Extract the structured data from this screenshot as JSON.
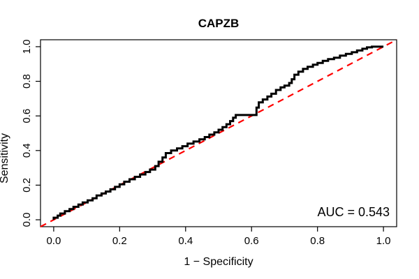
{
  "chart_data": {
    "type": "line",
    "subtype": "roc-curve",
    "title": "CAPZB",
    "xlabel": "1 − Specificity",
    "ylabel": "Sensitivity",
    "xlim": [
      0,
      1
    ],
    "ylim": [
      0,
      1
    ],
    "axis_padding_fraction": 0.04,
    "grid": false,
    "legend": "none",
    "x_ticks": [
      0.0,
      0.2,
      0.4,
      0.6,
      0.8,
      1.0
    ],
    "y_ticks": [
      0.0,
      0.2,
      0.4,
      0.6,
      0.8,
      1.0
    ],
    "x_tick_labels": [
      "0.0",
      "0.2",
      "0.4",
      "0.6",
      "0.8",
      "1.0"
    ],
    "y_tick_labels": [
      "0.0",
      "0.2",
      "0.4",
      "0.6",
      "0.8",
      "1.0"
    ],
    "auc": 0.543,
    "annotations": [
      {
        "text": "AUC = 0.543",
        "x": 0.97,
        "y": 0.06,
        "align": "right"
      }
    ],
    "colors": {
      "curve": "#000000",
      "diagonal": "#FF0000",
      "axis": "#000000",
      "text": "#000000",
      "background": "#FFFFFF"
    },
    "series": [
      {
        "name": "ROC step curve",
        "style": "solid",
        "color": "#000000",
        "width": 3,
        "points": [
          [
            0,
            0
          ],
          [
            0,
            0.012
          ],
          [
            0.012,
            0.012
          ],
          [
            0.012,
            0.024
          ],
          [
            0.02,
            0.024
          ],
          [
            0.02,
            0.036
          ],
          [
            0.034,
            0.036
          ],
          [
            0.034,
            0.05
          ],
          [
            0.048,
            0.05
          ],
          [
            0.048,
            0.062
          ],
          [
            0.06,
            0.062
          ],
          [
            0.06,
            0.075
          ],
          [
            0.075,
            0.075
          ],
          [
            0.075,
            0.088
          ],
          [
            0.088,
            0.088
          ],
          [
            0.088,
            0.1
          ],
          [
            0.103,
            0.1
          ],
          [
            0.103,
            0.112
          ],
          [
            0.118,
            0.112
          ],
          [
            0.118,
            0.124
          ],
          [
            0.13,
            0.124
          ],
          [
            0.13,
            0.14
          ],
          [
            0.145,
            0.14
          ],
          [
            0.145,
            0.152
          ],
          [
            0.158,
            0.152
          ],
          [
            0.158,
            0.163
          ],
          [
            0.172,
            0.163
          ],
          [
            0.172,
            0.176
          ],
          [
            0.186,
            0.176
          ],
          [
            0.186,
            0.19
          ],
          [
            0.2,
            0.19
          ],
          [
            0.2,
            0.205
          ],
          [
            0.214,
            0.205
          ],
          [
            0.214,
            0.22
          ],
          [
            0.23,
            0.22
          ],
          [
            0.23,
            0.234
          ],
          [
            0.246,
            0.234
          ],
          [
            0.246,
            0.248
          ],
          [
            0.262,
            0.248
          ],
          [
            0.262,
            0.262
          ],
          [
            0.278,
            0.262
          ],
          [
            0.278,
            0.276
          ],
          [
            0.292,
            0.276
          ],
          [
            0.292,
            0.29
          ],
          [
            0.308,
            0.29
          ],
          [
            0.308,
            0.31
          ],
          [
            0.318,
            0.31
          ],
          [
            0.318,
            0.335
          ],
          [
            0.33,
            0.335
          ],
          [
            0.33,
            0.36
          ],
          [
            0.34,
            0.36
          ],
          [
            0.34,
            0.385
          ],
          [
            0.356,
            0.385
          ],
          [
            0.356,
            0.4
          ],
          [
            0.374,
            0.4
          ],
          [
            0.374,
            0.412
          ],
          [
            0.39,
            0.412
          ],
          [
            0.39,
            0.425
          ],
          [
            0.406,
            0.425
          ],
          [
            0.406,
            0.44
          ],
          [
            0.424,
            0.44
          ],
          [
            0.424,
            0.452
          ],
          [
            0.442,
            0.452
          ],
          [
            0.442,
            0.465
          ],
          [
            0.458,
            0.465
          ],
          [
            0.458,
            0.478
          ],
          [
            0.472,
            0.478
          ],
          [
            0.472,
            0.492
          ],
          [
            0.487,
            0.492
          ],
          [
            0.487,
            0.505
          ],
          [
            0.5,
            0.505
          ],
          [
            0.5,
            0.52
          ],
          [
            0.512,
            0.52
          ],
          [
            0.512,
            0.535
          ],
          [
            0.524,
            0.535
          ],
          [
            0.524,
            0.552
          ],
          [
            0.535,
            0.552
          ],
          [
            0.535,
            0.57
          ],
          [
            0.544,
            0.57
          ],
          [
            0.544,
            0.59
          ],
          [
            0.552,
            0.59
          ],
          [
            0.552,
            0.605
          ],
          [
            0.615,
            0.605
          ],
          [
            0.615,
            0.648
          ],
          [
            0.622,
            0.648
          ],
          [
            0.622,
            0.678
          ],
          [
            0.634,
            0.678
          ],
          [
            0.634,
            0.695
          ],
          [
            0.648,
            0.695
          ],
          [
            0.648,
            0.712
          ],
          [
            0.66,
            0.712
          ],
          [
            0.66,
            0.728
          ],
          [
            0.674,
            0.728
          ],
          [
            0.674,
            0.75
          ],
          [
            0.688,
            0.75
          ],
          [
            0.688,
            0.765
          ],
          [
            0.7,
            0.765
          ],
          [
            0.7,
            0.775
          ],
          [
            0.714,
            0.775
          ],
          [
            0.714,
            0.79
          ],
          [
            0.722,
            0.79
          ],
          [
            0.722,
            0.812
          ],
          [
            0.73,
            0.812
          ],
          [
            0.73,
            0.838
          ],
          [
            0.742,
            0.838
          ],
          [
            0.742,
            0.856
          ],
          [
            0.756,
            0.856
          ],
          [
            0.756,
            0.872
          ],
          [
            0.77,
            0.872
          ],
          [
            0.77,
            0.884
          ],
          [
            0.786,
            0.884
          ],
          [
            0.786,
            0.896
          ],
          [
            0.8,
            0.896
          ],
          [
            0.8,
            0.906
          ],
          [
            0.816,
            0.906
          ],
          [
            0.816,
            0.918
          ],
          [
            0.832,
            0.918
          ],
          [
            0.832,
            0.928
          ],
          [
            0.85,
            0.928
          ],
          [
            0.85,
            0.936
          ],
          [
            0.868,
            0.936
          ],
          [
            0.868,
            0.948
          ],
          [
            0.886,
            0.948
          ],
          [
            0.886,
            0.958
          ],
          [
            0.904,
            0.958
          ],
          [
            0.904,
            0.968
          ],
          [
            0.92,
            0.968
          ],
          [
            0.92,
            0.978
          ],
          [
            0.936,
            0.978
          ],
          [
            0.936,
            0.988
          ],
          [
            0.95,
            0.988
          ],
          [
            0.95,
            0.996
          ],
          [
            0.965,
            0.996
          ],
          [
            0.965,
            1.0
          ],
          [
            1.0,
            1.0
          ]
        ]
      },
      {
        "name": "Chance diagonal (reference)",
        "style": "dashed",
        "color": "#FF0000",
        "width": 2.2,
        "points": [
          [
            -0.04,
            -0.04
          ],
          [
            1.04,
            1.04
          ]
        ]
      }
    ]
  }
}
